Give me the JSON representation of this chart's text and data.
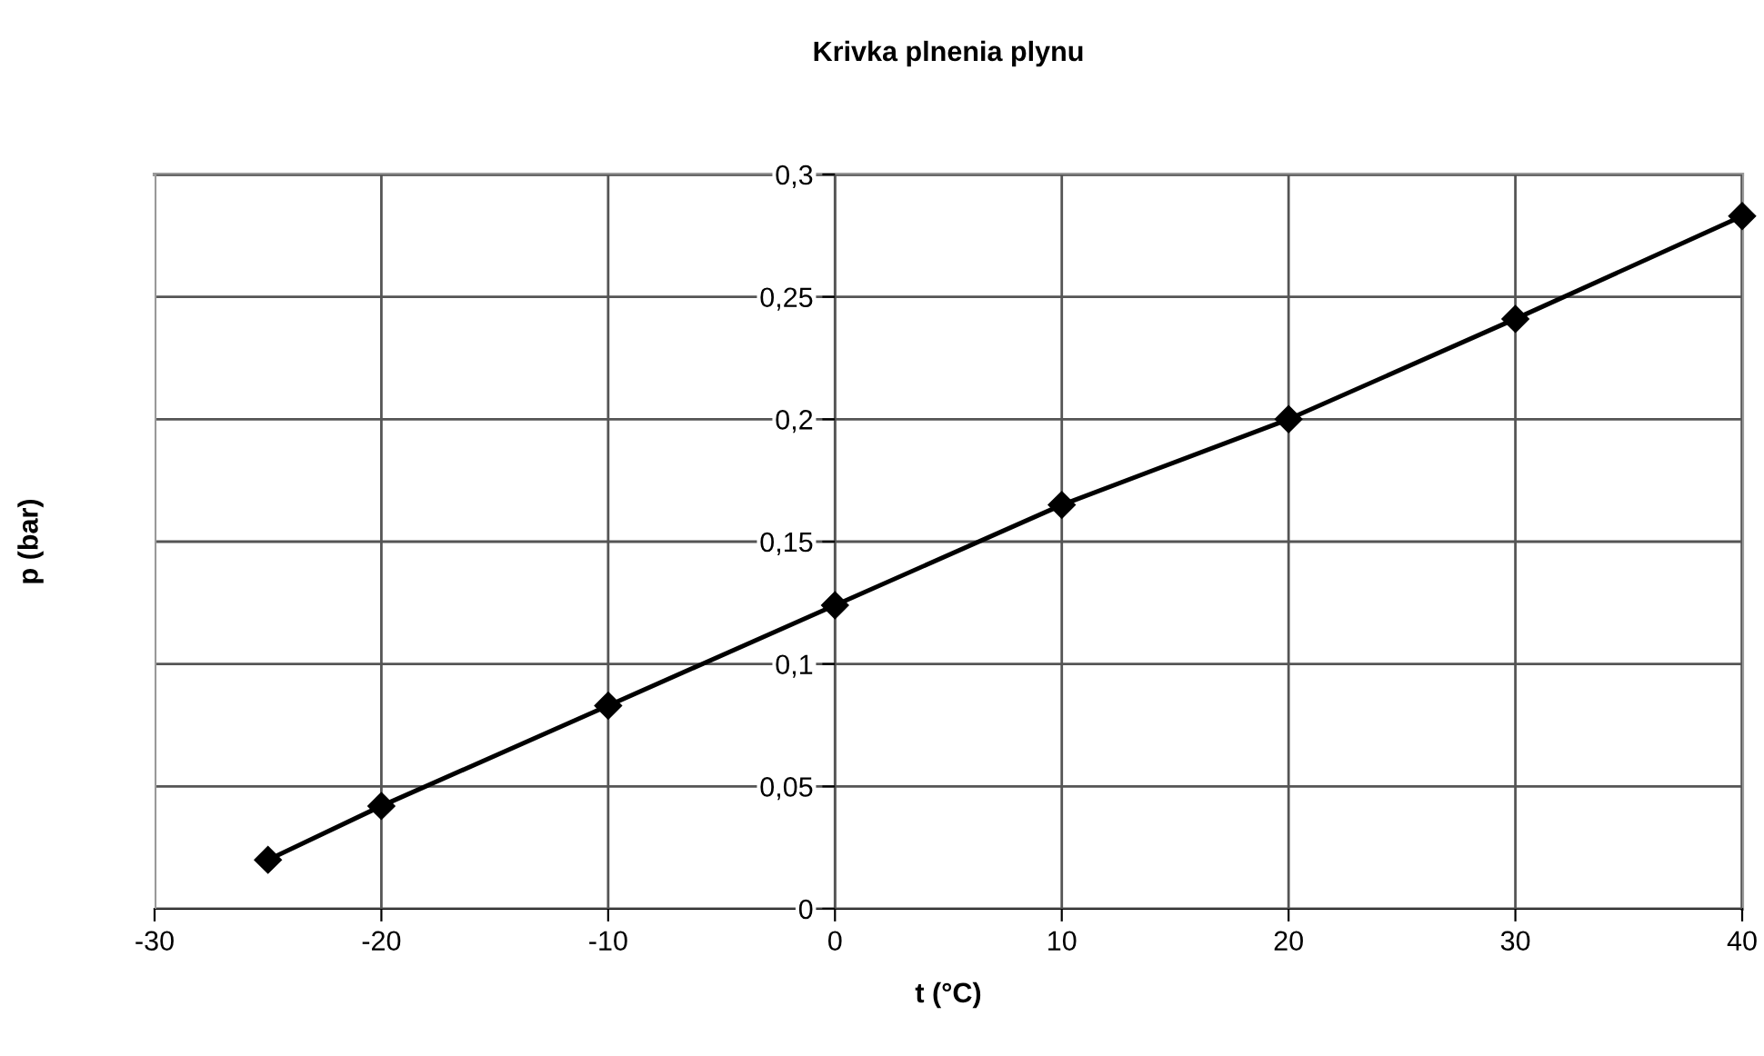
{
  "chart_data": {
    "type": "line",
    "title": "Krivka plnenia plynu",
    "xlabel": "t (°C)",
    "ylabel": "p (bar)",
    "x": [
      -25,
      -20,
      -10,
      0,
      10,
      20,
      30,
      40
    ],
    "series": [
      {
        "color": "#000000",
        "values": [
          0.02,
          0.042,
          0.083,
          0.124,
          0.165,
          0.2,
          0.241,
          0.283
        ]
      }
    ],
    "xlim": [
      -30,
      40
    ],
    "xticks": [
      -30,
      -20,
      -10,
      0,
      10,
      20,
      30,
      40
    ],
    "ylim": [
      0,
      0.3
    ],
    "yticks": [
      {
        "value": 0,
        "label": "0"
      },
      {
        "value": 0.05,
        "label": "0,05"
      },
      {
        "value": 0.1,
        "label": "0,1"
      },
      {
        "value": 0.15,
        "label": "0,15"
      },
      {
        "value": 0.2,
        "label": "0,2"
      },
      {
        "value": 0.25,
        "label": "0,25"
      },
      {
        "value": 0.3,
        "label": "0,3"
      }
    ],
    "grid": true,
    "marker": "diamond",
    "line_style": "solid"
  }
}
